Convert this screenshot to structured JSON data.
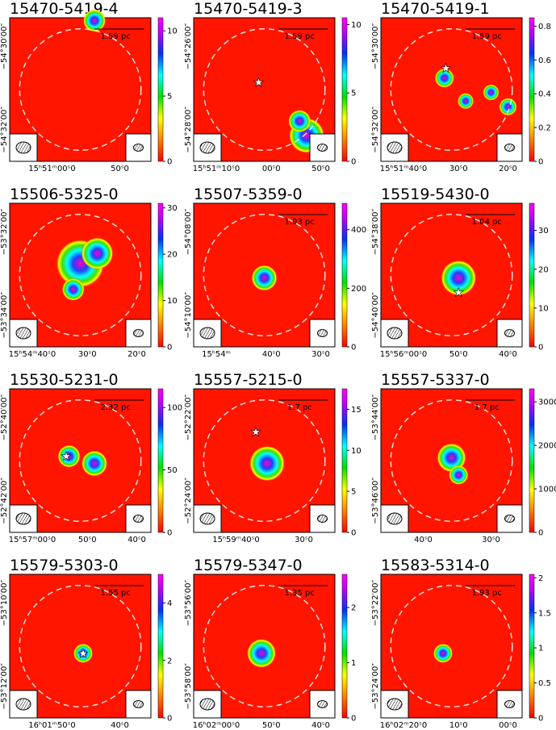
{
  "panels": [
    {
      "title": "15470-5419-4",
      "scalebar": "1.59 pc",
      "yticks": [
        "−54°30′00″",
        "−54°32′00″"
      ],
      "xticks": [
        "15ʰ51ᵐ00ˢ0",
        "50ˢ0"
      ],
      "colorbar": {
        "lim": [
          0,
          11
        ],
        "ticks": [
          0,
          5,
          10
        ]
      }
    },
    {
      "title": "15470-5419-3",
      "scalebar": "1.59 pc",
      "yticks": [
        "−54°26′00″",
        "−54°28′00″"
      ],
      "xticks": [
        "15ʰ51ᵐ10ˢ0",
        "00ˢ0",
        "50ˢ0"
      ],
      "colorbar": {
        "lim": [
          0,
          10.5
        ],
        "ticks": [
          0,
          5,
          10
        ]
      }
    },
    {
      "title": "15470-5419-1",
      "scalebar": "1.59 pc",
      "yticks": [
        "−54°30′00″",
        "−54°32′00″"
      ],
      "xticks": [
        "15ʰ51ᵐ40ˢ0",
        "30ˢ0",
        "20ˢ0"
      ],
      "colorbar": {
        "lim": [
          0,
          0.85
        ],
        "ticks": [
          0,
          0.2,
          0.4,
          0.6,
          0.8
        ]
      }
    },
    {
      "title": "15506-5325-0",
      "yticks": [
        "−53°32′00″",
        "−53°34′00″"
      ],
      "xticks": [
        "15ʰ54ᵐ40ˢ0",
        "30ˢ0",
        "20ˢ0"
      ],
      "colorbar": {
        "lim": [
          0,
          31
        ],
        "ticks": [
          0,
          10,
          20,
          30
        ]
      }
    },
    {
      "title": "15507-5359-0",
      "scalebar": "1.93 pc",
      "yticks": [
        "−54°08′00″",
        "−54°10′00″"
      ],
      "xticks": [
        "15ʰ54ᵐ",
        "40ˢ0",
        "30ˢ0"
      ],
      "colorbar": {
        "lim": [
          0,
          490
        ],
        "ticks": [
          0,
          200,
          400
        ]
      }
    },
    {
      "title": "15519-5430-0",
      "scalebar": "1.04 pc",
      "yticks": [
        "−54°38′00″",
        "−54°40′00″"
      ],
      "xticks": [
        "15ʰ56ᵐ00ˢ0",
        "50ˢ0",
        "40ˢ0"
      ],
      "colorbar": {
        "lim": [
          0,
          37
        ],
        "ticks": [
          0,
          10,
          20,
          30
        ]
      }
    },
    {
      "title": "15530-5231-0",
      "scalebar": "2.32 pc",
      "yticks": [
        "−52°40′00″",
        "−52°42′00″"
      ],
      "xticks": [
        "15ʰ57ᵐ00ˢ0",
        "50ˢ0",
        "40ˢ0"
      ],
      "colorbar": {
        "lim": [
          0,
          115
        ],
        "ticks": [
          0,
          50,
          100
        ]
      }
    },
    {
      "title": "15557-5215-0",
      "scalebar": "1.7 pc",
      "yticks": [
        "−52°22′00″",
        "−52°24′00″"
      ],
      "xticks": [
        "15ʰ59ᵐ40ˢ0",
        "30ˢ0"
      ],
      "colorbar": {
        "lim": [
          0,
          17.5
        ],
        "ticks": [
          0,
          5,
          10,
          15
        ]
      }
    },
    {
      "title": "15557-5337-0",
      "scalebar": "1.7 pc",
      "yticks": [
        "−53°44′00″",
        "−53°46′00″"
      ],
      "xticks": [
        "40ˢ0",
        "30ˢ0"
      ],
      "colorbar": {
        "lim": [
          0,
          3300
        ],
        "ticks": [
          0,
          1000,
          2000,
          3000
        ]
      }
    },
    {
      "title": "15579-5303-0",
      "scalebar": "1.55 pc",
      "yticks": [
        "−53°10′00″",
        "−53°12′00″"
      ],
      "xticks": [
        "16ʰ01ᵐ50ˢ0",
        "40ˢ0"
      ],
      "colorbar": {
        "lim": [
          0,
          5
        ],
        "ticks": [
          0,
          2,
          4
        ]
      }
    },
    {
      "title": "15579-5347-0",
      "scalebar": "1.35 pc",
      "yticks": [
        "−53°56′00″",
        "−53°58′00″"
      ],
      "xticks": [
        "16ʰ02ᵐ00ˢ0",
        "50ˢ0",
        "40ˢ0"
      ],
      "colorbar": {
        "lim": [
          0,
          2.6
        ],
        "ticks": [
          0,
          1,
          2
        ]
      }
    },
    {
      "title": "15583-5314-0",
      "scalebar": "1.93 pc",
      "yticks": [
        "−53°22′00″",
        "−53°24′00″"
      ],
      "xticks": [
        "16ʰ02ᵐ20ˢ0",
        "10ˢ0",
        "00ˢ0"
      ],
      "colorbar": {
        "lim": [
          0,
          2.05
        ],
        "ticks": [
          0,
          0.5,
          1,
          1.5,
          2
        ]
      }
    }
  ]
}
